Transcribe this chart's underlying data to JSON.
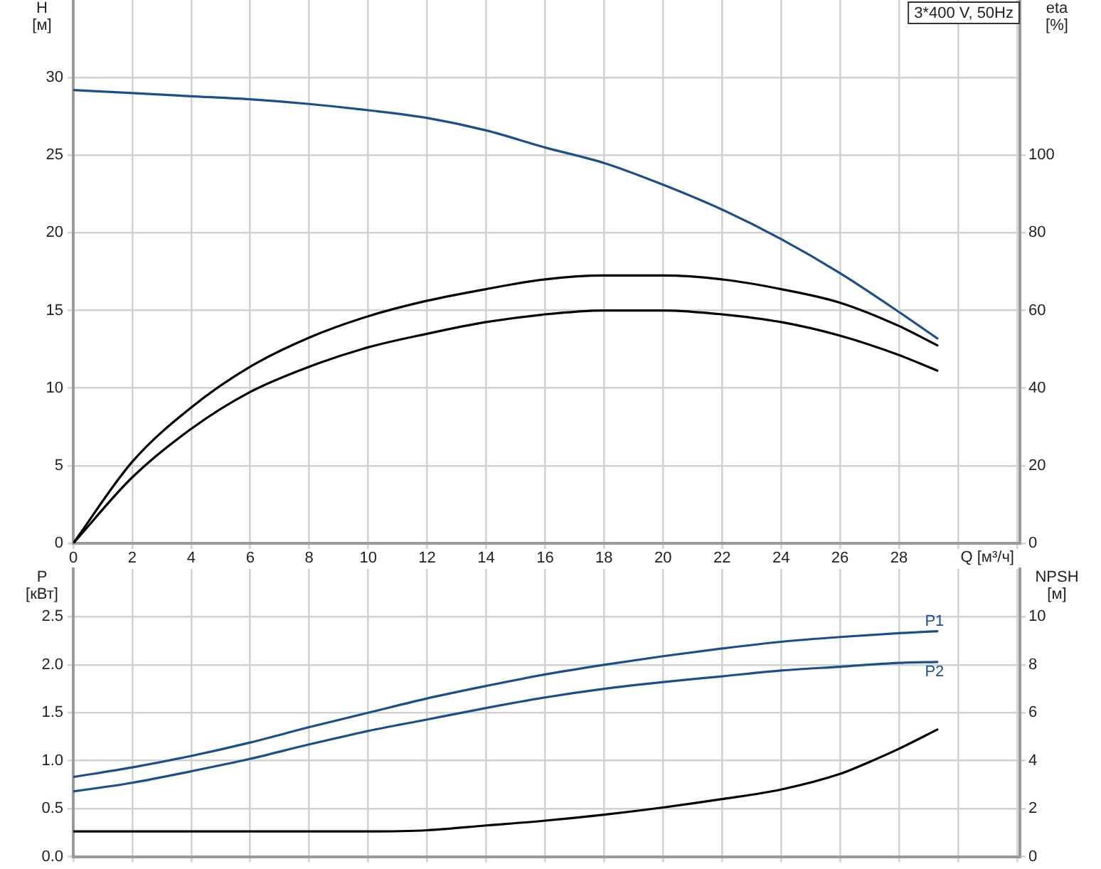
{
  "chart_data": [
    {
      "type": "line",
      "xlabel": "Q [м³/ч]",
      "ylabel": "H [м]",
      "y2label": "eta [%]",
      "annotations": [
        "3*400 V, 50Hz"
      ],
      "xlim": [
        0,
        32.1
      ],
      "xticks": [
        0,
        2,
        4,
        6,
        8,
        10,
        12,
        14,
        16,
        18,
        20,
        22,
        24,
        26,
        28,
        {
          "value": 30,
          "label": null
        },
        {
          "value": 32,
          "label": null
        }
      ],
      "ylim": [
        0,
        35
      ],
      "yticks": [
        0,
        5,
        10,
        15,
        20,
        25,
        30
      ],
      "y2lim": [
        0,
        140
      ],
      "y2ticks": [
        0,
        20,
        40,
        60,
        80,
        100
      ],
      "grid": true,
      "series": [
        {
          "color": "#1b4f8c",
          "x": [
            0,
            2,
            4,
            6,
            8,
            10,
            12,
            14,
            16,
            18,
            20,
            22,
            24,
            26,
            28,
            29.3
          ],
          "values": [
            29.2,
            29,
            28.8,
            28.6,
            28.3,
            27.9,
            27.4,
            26.6,
            25.5,
            24.5,
            23.1,
            21.5,
            19.6,
            17.4,
            14.9,
            13.2
          ]
        },
        {
          "color": "#000000",
          "axis": "y2",
          "x": [
            0,
            2,
            4,
            6,
            8,
            10,
            12,
            14,
            16,
            18,
            20,
            22,
            24,
            26,
            28,
            29.3
          ],
          "values": [
            0,
            21,
            35,
            45.5,
            53,
            58.5,
            62.5,
            65.5,
            68,
            69,
            69,
            68,
            65.5,
            62,
            56,
            51
          ]
        },
        {
          "color": "#000000",
          "axis": "y2",
          "x": [
            0,
            2,
            4,
            6,
            8,
            10,
            12,
            14,
            16,
            18,
            20,
            22,
            24,
            26,
            28,
            29.3
          ],
          "values": [
            0,
            17,
            29.5,
            39,
            45.5,
            50.5,
            54,
            57,
            59,
            60,
            60,
            59,
            57,
            53.5,
            48.5,
            44.5
          ]
        }
      ]
    },
    {
      "type": "line",
      "ylabel": "P [кВт]",
      "y2label": "NPSH [м]",
      "tick_labels": "y",
      "xlim": [
        0,
        32.1
      ],
      "xticks": [
        0,
        2,
        4,
        6,
        8,
        10,
        12,
        14,
        16,
        18,
        20,
        22,
        24,
        26,
        28,
        30,
        32
      ],
      "ylim": [
        0,
        3
      ],
      "yticks": [
        {
          "value": 0,
          "label": "0.0"
        },
        {
          "value": 0.5,
          "label": "0.5"
        },
        {
          "value": 1,
          "label": "1.0"
        },
        {
          "value": 1.5,
          "label": "1.5"
        },
        {
          "value": 2,
          "label": "2.0"
        },
        {
          "value": 2.5,
          "label": "2.5"
        }
      ],
      "y2lim": [
        0,
        12
      ],
      "y2ticks": [
        0,
        2,
        4,
        6,
        8,
        10
      ],
      "grid": true,
      "series": [
        {
          "name": "P1",
          "color": "#1b4f8c",
          "x": [
            0,
            2,
            4,
            6,
            8,
            10,
            12,
            14,
            16,
            18,
            20,
            22,
            24,
            26,
            28,
            29.3
          ],
          "values": [
            0.83,
            0.93,
            1.05,
            1.19,
            1.35,
            1.5,
            1.65,
            1.78,
            1.9,
            2.0,
            2.09,
            2.17,
            2.24,
            2.29,
            2.33,
            2.35
          ]
        },
        {
          "name": "P2",
          "color": "#1b4f8c",
          "x": [
            0,
            2,
            4,
            6,
            8,
            10,
            12,
            14,
            16,
            18,
            20,
            22,
            24,
            26,
            28,
            29.3
          ],
          "values": [
            0.68,
            0.77,
            0.89,
            1.02,
            1.17,
            1.31,
            1.43,
            1.55,
            1.66,
            1.75,
            1.82,
            1.88,
            1.94,
            1.98,
            2.02,
            2.03
          ]
        },
        {
          "color": "#000000",
          "axis": "y2",
          "x": [
            0,
            2,
            4,
            6,
            8,
            10,
            12,
            14,
            16,
            18,
            20,
            22,
            24,
            26,
            27,
            28,
            29.3
          ],
          "values": [
            1.05,
            1.05,
            1.05,
            1.05,
            1.05,
            1.05,
            1.1,
            1.3,
            1.5,
            1.75,
            2.05,
            2.4,
            2.8,
            3.45,
            3.95,
            4.5,
            5.3
          ]
        }
      ]
    }
  ]
}
